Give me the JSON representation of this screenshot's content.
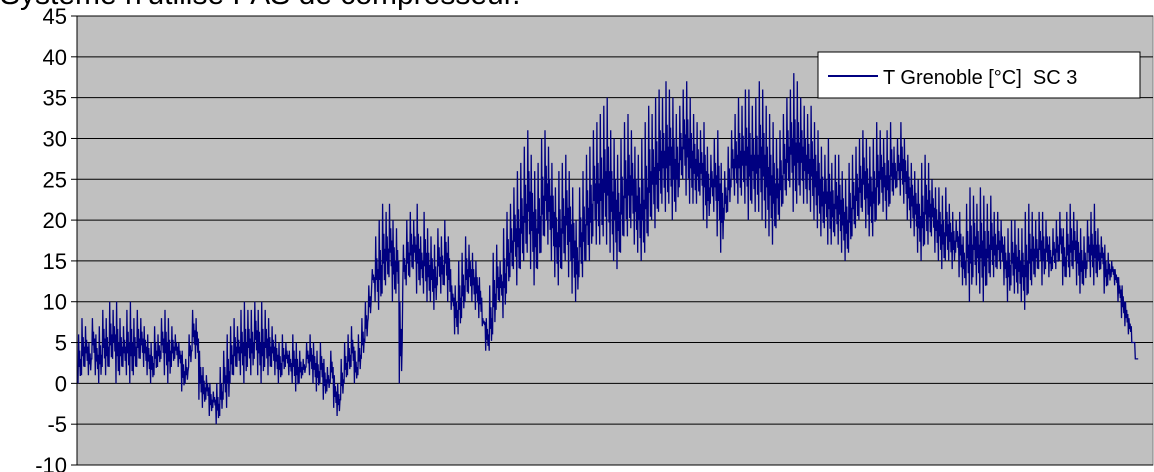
{
  "page": {
    "title": "Système n'utilise PAS de compresseur."
  },
  "chart_data": {
    "type": "line",
    "title": "",
    "xlabel": "",
    "ylabel": "",
    "ylim": [
      -10,
      45
    ],
    "yticks": [
      "45",
      "40",
      "35",
      "30",
      "25",
      "20",
      "15",
      "10",
      "5",
      "0",
      "-5",
      "-10"
    ],
    "grid": true,
    "legend_position": "top-right",
    "colors": {
      "plot_bg": "#c0c0c0",
      "series": "#000080",
      "grid": "#000000"
    },
    "series": [
      {
        "name": "T Grenoble [°C]  SC 3",
        "note_resolution": "daily min/max envelope, 365 days",
        "min": [
          0,
          1,
          2,
          1,
          3,
          1,
          0,
          2,
          1,
          2,
          3,
          0,
          1,
          2,
          1,
          0,
          1,
          2,
          3,
          2,
          1,
          0,
          1,
          2,
          3,
          1,
          0,
          2,
          3,
          2,
          -1,
          0,
          2,
          4,
          3,
          -2,
          -3,
          -2,
          -4,
          -3,
          -5,
          -4,
          -2,
          -3,
          0,
          1,
          2,
          1,
          0,
          2,
          1,
          3,
          1,
          0,
          2,
          1,
          2,
          1,
          0,
          1,
          2,
          1,
          0,
          -1,
          0,
          1,
          2,
          1,
          0,
          -1,
          0,
          -2,
          -1,
          0,
          -3,
          -4,
          -2,
          0,
          1,
          2,
          0,
          1,
          3,
          5,
          8,
          12,
          10,
          9,
          11,
          12,
          13,
          10,
          11,
          0,
          12,
          12,
          13,
          14,
          11,
          12,
          11,
          10,
          10,
          9,
          12,
          11,
          12,
          10,
          9,
          6,
          6,
          8,
          10,
          11,
          10,
          9,
          8,
          7,
          4,
          4,
          6,
          9,
          10,
          8,
          11,
          13,
          14,
          12,
          14,
          15,
          16,
          14,
          12,
          14,
          16,
          18,
          17,
          15,
          13,
          12,
          14,
          15,
          13,
          11,
          10,
          13,
          13,
          15,
          15,
          18,
          17,
          17,
          18,
          17,
          16,
          15,
          14,
          16,
          18,
          18,
          19,
          17,
          16,
          15,
          16,
          18,
          20,
          19,
          21,
          22,
          21,
          22,
          20,
          21,
          24,
          25,
          23,
          22,
          22,
          22,
          23,
          20,
          19,
          22,
          21,
          18,
          16,
          20,
          21,
          24,
          23,
          22,
          23,
          22,
          20,
          22,
          21,
          21,
          20,
          19,
          18,
          17,
          19,
          20,
          22,
          23,
          24,
          21,
          22,
          23,
          22,
          22,
          21,
          20,
          19,
          18,
          19,
          17,
          17,
          18,
          17,
          16,
          15,
          16,
          18,
          19,
          20,
          21,
          19,
          18,
          18,
          20,
          22,
          21,
          20,
          22,
          23,
          24,
          23,
          22,
          20,
          19,
          18,
          16,
          15,
          17,
          17,
          18,
          16,
          15,
          14,
          15,
          15,
          14,
          16,
          13,
          12,
          12,
          10,
          13,
          12,
          11,
          10,
          12,
          13,
          13,
          14,
          14,
          12,
          10,
          12,
          11,
          11,
          10,
          9,
          11,
          12,
          13,
          14,
          12,
          14,
          13,
          14,
          14,
          15,
          12,
          13,
          13,
          14,
          12,
          11,
          12,
          14,
          13,
          12,
          13,
          14,
          11,
          12,
          13,
          12,
          10,
          8,
          7,
          6,
          5,
          3,
          2,
          1,
          0,
          0
        ],
        "max": [
          6,
          8,
          7,
          5,
          8,
          6,
          7,
          9,
          8,
          10,
          9,
          10,
          8,
          7,
          9,
          10,
          8,
          9,
          8,
          7,
          6,
          5,
          7,
          6,
          8,
          9,
          8,
          7,
          6,
          5,
          4,
          3,
          6,
          9,
          8,
          4,
          2,
          1,
          0,
          -1,
          0,
          2,
          4,
          6,
          7,
          8,
          7,
          9,
          10,
          9,
          9,
          10,
          9,
          10,
          9,
          8,
          7,
          6,
          5,
          6,
          5,
          4,
          6,
          5,
          4,
          3,
          5,
          6,
          5,
          4,
          5,
          3,
          2,
          4,
          1,
          0,
          3,
          5,
          6,
          7,
          4,
          6,
          8,
          10,
          12,
          14,
          18,
          20,
          22,
          21,
          22,
          20,
          19,
          10,
          17,
          20,
          21,
          20,
          22,
          18,
          21,
          19,
          18,
          17,
          19,
          18,
          20,
          18,
          12,
          12,
          15,
          16,
          18,
          17,
          16,
          15,
          13,
          8,
          8,
          12,
          16,
          17,
          15,
          19,
          21,
          22,
          24,
          26,
          27,
          29,
          31,
          28,
          26,
          27,
          30,
          31,
          29,
          27,
          24,
          26,
          27,
          28,
          26,
          24,
          20,
          24,
          26,
          28,
          29,
          31,
          32,
          33,
          34,
          35,
          31,
          30,
          28,
          30,
          32,
          33,
          31,
          29,
          28,
          30,
          32,
          34,
          33,
          35,
          36,
          35,
          37,
          36,
          35,
          33,
          34,
          36,
          37,
          35,
          33,
          32,
          31,
          32,
          29,
          28,
          30,
          31,
          27,
          26,
          29,
          31,
          33,
          35,
          34,
          36,
          36,
          34,
          35,
          37,
          36,
          34,
          33,
          32,
          30,
          31,
          33,
          35,
          36,
          38,
          37,
          35,
          34,
          33,
          34,
          32,
          31,
          29,
          28,
          30,
          27,
          28,
          28,
          26,
          25,
          27,
          28,
          29,
          30,
          31,
          30,
          29,
          30,
          32,
          31,
          30,
          31,
          32,
          29,
          30,
          32,
          30,
          28,
          27,
          26,
          25,
          27,
          28,
          27,
          25,
          24,
          24,
          23,
          24,
          22,
          21,
          20,
          21,
          18,
          22,
          24,
          23,
          22,
          24,
          23,
          22,
          23,
          21,
          21,
          20,
          18,
          19,
          20,
          20,
          19,
          19,
          21,
          22,
          21,
          20,
          21,
          21,
          20,
          18,
          19,
          20,
          21,
          19,
          21,
          22,
          21,
          20,
          19,
          18,
          20,
          21,
          22,
          19,
          18,
          17,
          16,
          15,
          14,
          13,
          12,
          10,
          8,
          5,
          3
        ]
      }
    ]
  }
}
